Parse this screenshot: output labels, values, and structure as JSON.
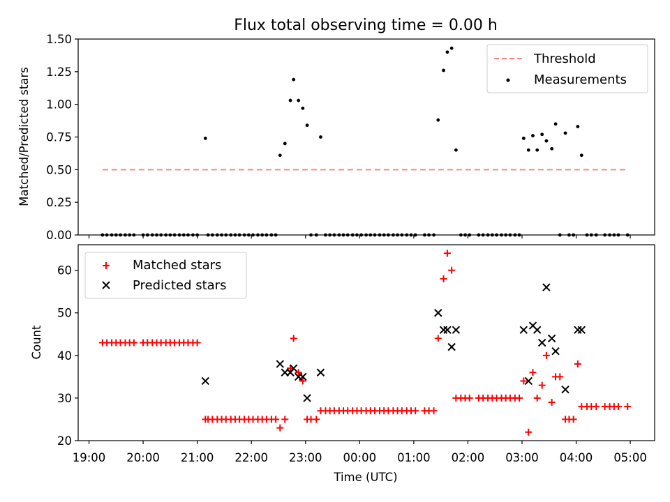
{
  "chart_data": [
    {
      "type": "scatter",
      "title": "Flux total observing time = 0.00 h",
      "xlabel": "",
      "ylabel": "Matched/Predicted stars",
      "xlim": [
        18.8,
        29.45
      ],
      "ylim": [
        0,
        1.5
      ],
      "yticks": [
        "0.00",
        "0.25",
        "0.50",
        "0.75",
        "1.00",
        "1.25",
        "1.50"
      ],
      "grid": false,
      "legend_position": "top-right",
      "threshold": {
        "name": "Threshold",
        "value": 0.5,
        "x_start": 19.25,
        "x_end": 28.97,
        "color": "#ff8080"
      },
      "series": [
        {
          "name": "Measurements",
          "color": "#000000",
          "points": [
            [
              19.25,
              0
            ],
            [
              19.33,
              0
            ],
            [
              19.42,
              0
            ],
            [
              19.5,
              0
            ],
            [
              19.58,
              0
            ],
            [
              19.67,
              0
            ],
            [
              19.75,
              0
            ],
            [
              19.83,
              0
            ],
            [
              20.0,
              0
            ],
            [
              20.08,
              0
            ],
            [
              20.17,
              0
            ],
            [
              20.25,
              0
            ],
            [
              20.33,
              0
            ],
            [
              20.42,
              0
            ],
            [
              20.5,
              0
            ],
            [
              20.58,
              0
            ],
            [
              20.67,
              0
            ],
            [
              20.75,
              0
            ],
            [
              20.83,
              0
            ],
            [
              20.92,
              0
            ],
            [
              21.0,
              0
            ],
            [
              21.15,
              0.74
            ],
            [
              21.2,
              0
            ],
            [
              21.28,
              0
            ],
            [
              21.37,
              0
            ],
            [
              21.45,
              0
            ],
            [
              21.53,
              0
            ],
            [
              21.62,
              0
            ],
            [
              21.7,
              0
            ],
            [
              21.78,
              0
            ],
            [
              21.87,
              0
            ],
            [
              21.95,
              0
            ],
            [
              22.03,
              0
            ],
            [
              22.12,
              0
            ],
            [
              22.2,
              0
            ],
            [
              22.28,
              0
            ],
            [
              22.37,
              0
            ],
            [
              22.45,
              0
            ],
            [
              22.53,
              0.61
            ],
            [
              22.62,
              0.7
            ],
            [
              22.72,
              1.03
            ],
            [
              22.78,
              1.19
            ],
            [
              22.87,
              1.03
            ],
            [
              22.95,
              0.97
            ],
            [
              23.03,
              0.84
            ],
            [
              23.1,
              0
            ],
            [
              23.2,
              0
            ],
            [
              23.28,
              0.75
            ],
            [
              23.37,
              0
            ],
            [
              23.45,
              0
            ],
            [
              23.53,
              0
            ],
            [
              23.62,
              0
            ],
            [
              23.7,
              0
            ],
            [
              23.78,
              0
            ],
            [
              23.87,
              0
            ],
            [
              23.95,
              0
            ],
            [
              24.03,
              0
            ],
            [
              24.12,
              0
            ],
            [
              24.2,
              0
            ],
            [
              24.28,
              0
            ],
            [
              24.37,
              0
            ],
            [
              24.45,
              0
            ],
            [
              24.53,
              0
            ],
            [
              24.62,
              0
            ],
            [
              24.7,
              0
            ],
            [
              24.78,
              0
            ],
            [
              24.87,
              0
            ],
            [
              24.95,
              0
            ],
            [
              25.03,
              0
            ],
            [
              25.2,
              0
            ],
            [
              25.28,
              0
            ],
            [
              25.37,
              0
            ],
            [
              25.45,
              0.88
            ],
            [
              25.55,
              1.26
            ],
            [
              25.62,
              1.4
            ],
            [
              25.7,
              1.43
            ],
            [
              25.78,
              0.65
            ],
            [
              25.87,
              0
            ],
            [
              25.95,
              0
            ],
            [
              26.03,
              0
            ],
            [
              26.2,
              0
            ],
            [
              26.28,
              0
            ],
            [
              26.37,
              0
            ],
            [
              26.45,
              0
            ],
            [
              26.53,
              0
            ],
            [
              26.62,
              0
            ],
            [
              26.7,
              0
            ],
            [
              26.78,
              0
            ],
            [
              26.87,
              0
            ],
            [
              26.95,
              0
            ],
            [
              27.03,
              0.74
            ],
            [
              27.12,
              0.65
            ],
            [
              27.2,
              0.76
            ],
            [
              27.28,
              0.65
            ],
            [
              27.37,
              0.77
            ],
            [
              27.45,
              0.72
            ],
            [
              27.55,
              0.66
            ],
            [
              27.62,
              0.85
            ],
            [
              27.7,
              0
            ],
            [
              27.8,
              0.78
            ],
            [
              27.87,
              0
            ],
            [
              27.95,
              0
            ],
            [
              28.03,
              0.83
            ],
            [
              28.1,
              0.61
            ],
            [
              28.2,
              0
            ],
            [
              28.28,
              0
            ],
            [
              28.37,
              0
            ],
            [
              28.53,
              0
            ],
            [
              28.62,
              0
            ],
            [
              28.7,
              0
            ],
            [
              28.78,
              0
            ],
            [
              28.95,
              0
            ]
          ]
        }
      ]
    },
    {
      "type": "scatter",
      "title": "",
      "xlabel": "Time (UTC)",
      "ylabel": "Count",
      "xlim": [
        18.8,
        29.45
      ],
      "ylim": [
        20,
        66
      ],
      "yticks": [
        "20",
        "30",
        "40",
        "50",
        "60"
      ],
      "xticks": [
        {
          "label": "19:00",
          "hour": 19
        },
        {
          "label": "20:00",
          "hour": 20
        },
        {
          "label": "21:00",
          "hour": 21
        },
        {
          "label": "22:00",
          "hour": 22
        },
        {
          "label": "23:00",
          "hour": 23
        },
        {
          "label": "00:00",
          "hour": 24
        },
        {
          "label": "01:00",
          "hour": 25
        },
        {
          "label": "02:00",
          "hour": 26
        },
        {
          "label": "03:00",
          "hour": 27
        },
        {
          "label": "04:00",
          "hour": 28
        },
        {
          "label": "05:00",
          "hour": 29
        }
      ],
      "grid": false,
      "legend_position": "top-left",
      "series": [
        {
          "name": "Matched stars",
          "marker": "plus",
          "color": "#ff0000",
          "points": [
            [
              19.25,
              43
            ],
            [
              19.33,
              43
            ],
            [
              19.42,
              43
            ],
            [
              19.5,
              43
            ],
            [
              19.58,
              43
            ],
            [
              19.67,
              43
            ],
            [
              19.75,
              43
            ],
            [
              19.83,
              43
            ],
            [
              20.0,
              43
            ],
            [
              20.08,
              43
            ],
            [
              20.17,
              43
            ],
            [
              20.25,
              43
            ],
            [
              20.33,
              43
            ],
            [
              20.42,
              43
            ],
            [
              20.5,
              43
            ],
            [
              20.58,
              43
            ],
            [
              20.67,
              43
            ],
            [
              20.75,
              43
            ],
            [
              20.83,
              43
            ],
            [
              20.92,
              43
            ],
            [
              21.0,
              43
            ],
            [
              21.15,
              25
            ],
            [
              21.2,
              25
            ],
            [
              21.28,
              25
            ],
            [
              21.37,
              25
            ],
            [
              21.45,
              25
            ],
            [
              21.53,
              25
            ],
            [
              21.62,
              25
            ],
            [
              21.7,
              25
            ],
            [
              21.78,
              25
            ],
            [
              21.87,
              25
            ],
            [
              21.95,
              25
            ],
            [
              22.03,
              25
            ],
            [
              22.12,
              25
            ],
            [
              22.2,
              25
            ],
            [
              22.28,
              25
            ],
            [
              22.37,
              25
            ],
            [
              22.45,
              25
            ],
            [
              22.53,
              23
            ],
            [
              22.62,
              25
            ],
            [
              22.72,
              37
            ],
            [
              22.78,
              44
            ],
            [
              22.87,
              36
            ],
            [
              22.95,
              34
            ],
            [
              23.03,
              25
            ],
            [
              23.1,
              25
            ],
            [
              23.2,
              25
            ],
            [
              23.28,
              27
            ],
            [
              23.37,
              27
            ],
            [
              23.45,
              27
            ],
            [
              23.53,
              27
            ],
            [
              23.62,
              27
            ],
            [
              23.7,
              27
            ],
            [
              23.78,
              27
            ],
            [
              23.87,
              27
            ],
            [
              23.95,
              27
            ],
            [
              24.03,
              27
            ],
            [
              24.12,
              27
            ],
            [
              24.2,
              27
            ],
            [
              24.28,
              27
            ],
            [
              24.37,
              27
            ],
            [
              24.45,
              27
            ],
            [
              24.53,
              27
            ],
            [
              24.62,
              27
            ],
            [
              24.7,
              27
            ],
            [
              24.78,
              27
            ],
            [
              24.87,
              27
            ],
            [
              24.95,
              27
            ],
            [
              25.03,
              27
            ],
            [
              25.2,
              27
            ],
            [
              25.28,
              27
            ],
            [
              25.37,
              27
            ],
            [
              25.45,
              44
            ],
            [
              25.55,
              58
            ],
            [
              25.62,
              64
            ],
            [
              25.7,
              60
            ],
            [
              25.78,
              30
            ],
            [
              25.87,
              30
            ],
            [
              25.95,
              30
            ],
            [
              26.03,
              30
            ],
            [
              26.2,
              30
            ],
            [
              26.28,
              30
            ],
            [
              26.37,
              30
            ],
            [
              26.45,
              30
            ],
            [
              26.53,
              30
            ],
            [
              26.62,
              30
            ],
            [
              26.7,
              30
            ],
            [
              26.78,
              30
            ],
            [
              26.87,
              30
            ],
            [
              26.95,
              30
            ],
            [
              27.03,
              34
            ],
            [
              27.12,
              22
            ],
            [
              27.2,
              36
            ],
            [
              27.28,
              30
            ],
            [
              27.37,
              33
            ],
            [
              27.45,
              40
            ],
            [
              27.55,
              29
            ],
            [
              27.62,
              35
            ],
            [
              27.7,
              35
            ],
            [
              27.8,
              25
            ],
            [
              27.87,
              25
            ],
            [
              27.95,
              25
            ],
            [
              28.03,
              38
            ],
            [
              28.1,
              28
            ],
            [
              28.2,
              28
            ],
            [
              28.28,
              28
            ],
            [
              28.37,
              28
            ],
            [
              28.53,
              28
            ],
            [
              28.62,
              28
            ],
            [
              28.7,
              28
            ],
            [
              28.78,
              28
            ],
            [
              28.95,
              28
            ]
          ]
        },
        {
          "name": "Predicted stars",
          "marker": "x",
          "color": "#000000",
          "points": [
            [
              21.15,
              34
            ],
            [
              22.53,
              38
            ],
            [
              22.62,
              36
            ],
            [
              22.72,
              36
            ],
            [
              22.78,
              37
            ],
            [
              22.87,
              35
            ],
            [
              22.95,
              35
            ],
            [
              23.03,
              30
            ],
            [
              23.28,
              36
            ],
            [
              25.45,
              50
            ],
            [
              25.55,
              46
            ],
            [
              25.62,
              46
            ],
            [
              25.7,
              42
            ],
            [
              25.78,
              46
            ],
            [
              27.03,
              46
            ],
            [
              27.12,
              34
            ],
            [
              27.2,
              47
            ],
            [
              27.28,
              46
            ],
            [
              27.37,
              43
            ],
            [
              27.45,
              56
            ],
            [
              27.55,
              44
            ],
            [
              27.62,
              41
            ],
            [
              27.8,
              32
            ],
            [
              28.03,
              46
            ],
            [
              28.1,
              46
            ]
          ]
        }
      ]
    }
  ]
}
